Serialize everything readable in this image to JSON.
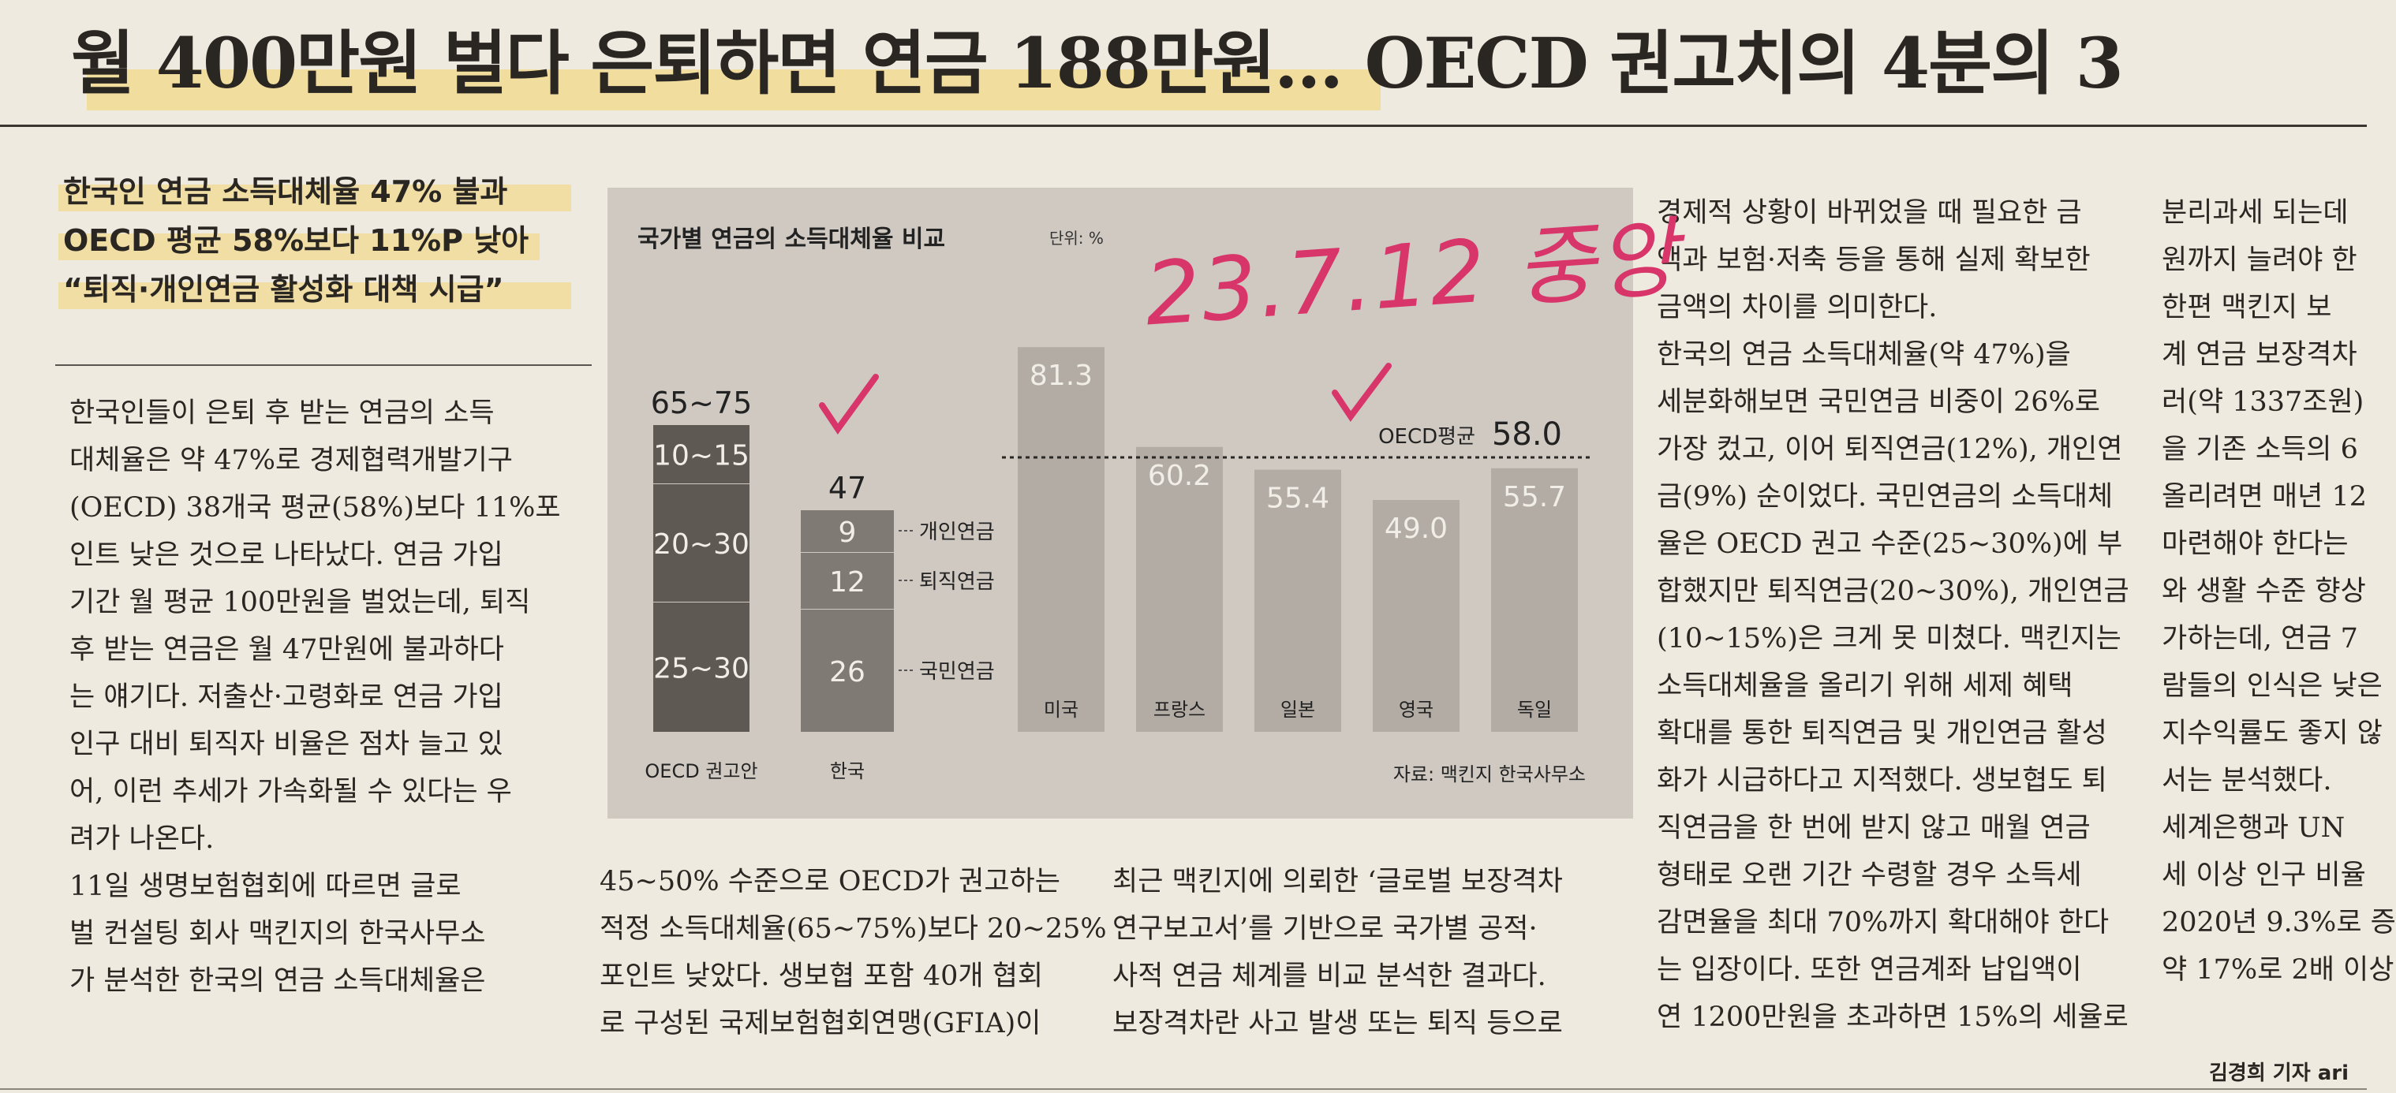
{
  "headline": "월 400만원 벌다 은퇴하면 연금 188만원… OECD 권고치의 4분의 3",
  "subhead": [
    "한국인 연금 소득대체율 47% 불과",
    "OECD 평균 58%보다 11%P 낮아",
    "“퇴직·개인연금 활성화 대책 시급”"
  ],
  "columns": [
    [
      "한국인들이 은퇴 후 받는 연금의 소득",
      "대체율은 약 47%로 경제협력개발기구",
      "(OECD) 38개국 평균(58%)보다 11%포",
      "인트 낮은 것으로 나타났다. 연금 가입",
      "기간 월 평균 100만원을 벌었는데, 퇴직",
      "후 받는 연금은 월 47만원에 불과하다",
      "는 얘기다. 저출산·고령화로 연금 가입",
      "인구 대비 퇴직자 비율은 점차 늘고 있",
      "어, 이런 추세가 가속화될 수 있다는 우",
      "려가 나온다.",
      " 11일 생명보험협회에 따르면 글로",
      "벌 컨설팅 회사 맥킨지의 한국사무소",
      "가 분석한 한국의 연금 소득대체율은"
    ],
    [
      "45~50% 수준으로 OECD가 권고하는",
      "적정 소득대체율(65~75%)보다 20~25%",
      "포인트 낮았다. 생보협 포함 40개 협회",
      "로 구성된 국제보험협회연맹(GFIA)이"
    ],
    [
      "최근 맥킨지에 의뢰한 ‘글로벌 보장격차",
      "연구보고서’를 기반으로 국가별 공적·",
      "사적 연금 체계를 비교 분석한 결과다.",
      "보장격차란 사고 발생 또는 퇴직 등으로"
    ],
    [
      "경제적 상황이 바뀌었을 때 필요한 금",
      "액과 보험·저축 등을 통해 실제 확보한",
      "금액의 차이를 의미한다.",
      " 한국의 연금 소득대체율(약 47%)을",
      "세분화해보면 국민연금 비중이 26%로",
      "가장 컸고, 이어 퇴직연금(12%), 개인연",
      "금(9%) 순이었다. 국민연금의 소득대체",
      "율은 OECD 권고 수준(25~30%)에 부",
      "합했지만 퇴직연금(20~30%), 개인연금",
      "(10~15%)은 크게 못 미쳤다. 맥킨지는",
      "소득대체율을 올리기 위해 세제 혜택",
      "확대를 통한 퇴직연금 및 개인연금 활성",
      "화가 시급하다고 지적했다. 생보협도 퇴",
      "직연금을 한 번에 받지 않고 매월 연금",
      "형태로 오랜 기간 수령할 경우 소득세",
      "감면율을 최대 70%까지 확대해야 한다",
      "는 입장이다. 또한 연금계좌 납입액이",
      "연 1200만원을 초과하면 15%의 세율로"
    ],
    [
      "분리과세 되는데",
      "원까지 늘려야 한",
      " 한편 맥킨지 보",
      "계 연금 보장격차",
      "러(약 1337조원)",
      "을 기존 소득의 6",
      "올리려면 매년 12",
      "마련해야 한다는",
      "와 생활 수준 향상",
      "가하는데, 연금 7",
      "람들의 인식은 낮은",
      "지수익률도 좋지 않",
      "서는 분석했다.",
      " 세계은행과 UN",
      "세 이상 인구 비율",
      "2020년 9.3%로 증",
      "약 17%로 2배 이상"
    ]
  ],
  "byline": "김경희 기자 ari",
  "handwriting": "23.7.12 중앙",
  "chart_data": {
    "type": "bar",
    "title": "국가별 연금의 소득대체율 비교",
    "unit": "단위: %",
    "source": "자료: 맥킨지 한국사무소",
    "oecd_recommendation": {
      "label": "OECD 권고안",
      "total_label": "65~75",
      "segments": [
        {
          "name": "국민연금",
          "range": "25~30"
        },
        {
          "name": "퇴직연금",
          "range": "20~30"
        },
        {
          "name": "개인연금",
          "range": "10~15"
        }
      ]
    },
    "korea": {
      "label": "한국",
      "total": 47,
      "segments": [
        {
          "name": "국민연금",
          "value": 26
        },
        {
          "name": "퇴직연금",
          "value": 12
        },
        {
          "name": "개인연금",
          "value": 9
        }
      ]
    },
    "countries": [
      {
        "name": "미국",
        "value": 81.3
      },
      {
        "name": "프랑스",
        "value": 60.2
      },
      {
        "name": "일본",
        "value": 55.4
      },
      {
        "name": "영국",
        "value": 49.0
      },
      {
        "name": "독일",
        "value": 55.7
      }
    ],
    "oecd_average": {
      "label": "OECD평균",
      "value": 58.0
    },
    "ylim": [
      0,
      90
    ],
    "colors": {
      "dark": "#5f5954",
      "mid": "#807a74",
      "light": "#b2aca5",
      "text_light": "#f1ede7"
    }
  }
}
